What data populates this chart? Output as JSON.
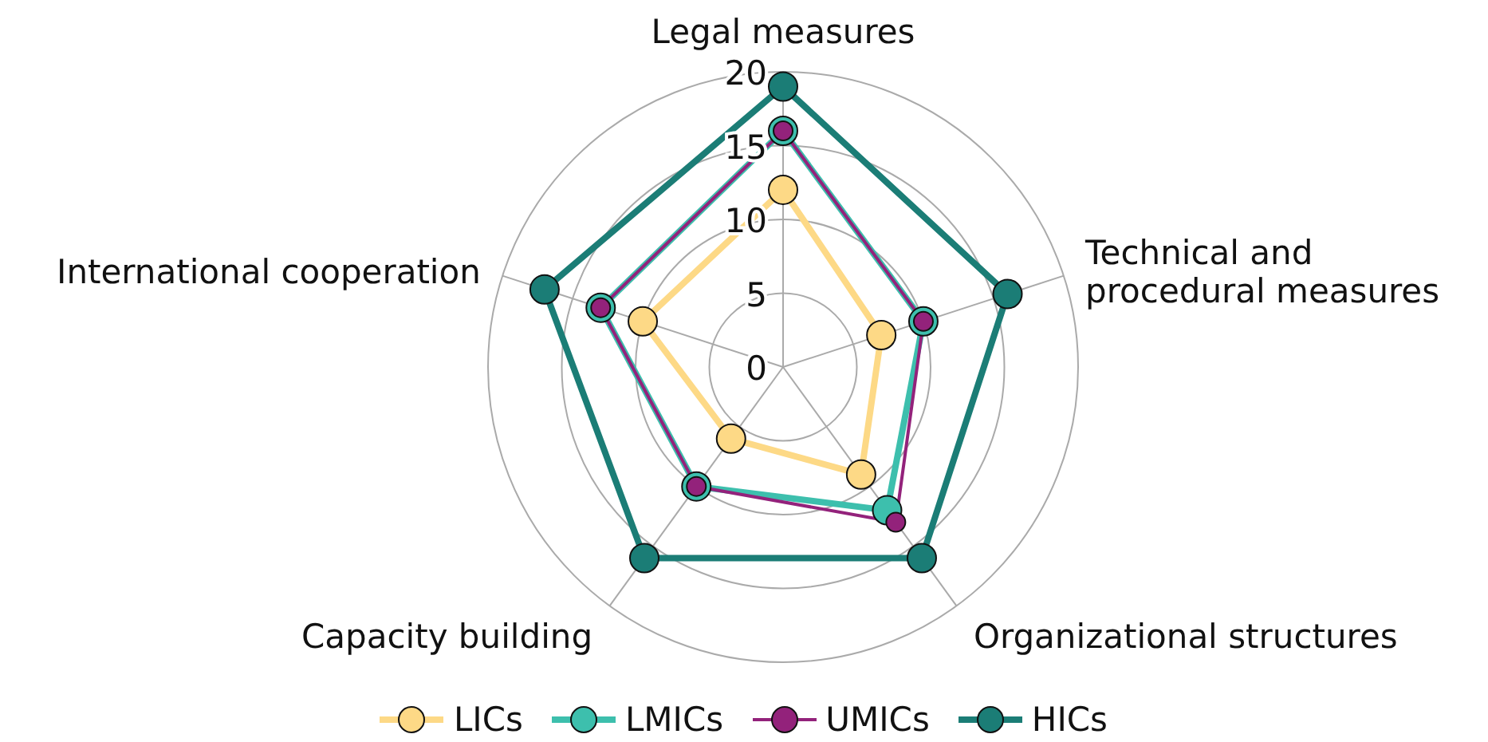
{
  "chart_data": {
    "type": "radar",
    "categories": [
      "Legal measures",
      "Technical and procedural measures",
      "Organizational structures",
      "Capacity building",
      "International cooperation"
    ],
    "series": [
      {
        "name": "LICs",
        "color": "#fdd986",
        "values": [
          12,
          7,
          9,
          6,
          10
        ]
      },
      {
        "name": "LMICs",
        "color": "#3dbfad",
        "values": [
          16,
          10,
          12,
          10,
          13
        ]
      },
      {
        "name": "UMICs",
        "color": "#93227b",
        "values": [
          16,
          10,
          13,
          10,
          13
        ]
      },
      {
        "name": "HICs",
        "color": "#1b7d76",
        "values": [
          19,
          16,
          16,
          16,
          17
        ]
      }
    ],
    "ylim": [
      0,
      20
    ],
    "yticks": [
      0,
      5,
      10,
      15,
      20
    ],
    "grid": true,
    "legend": "bottom",
    "marker": "circle"
  }
}
